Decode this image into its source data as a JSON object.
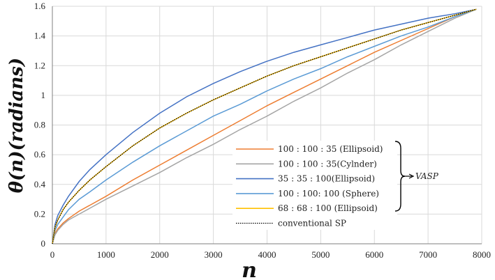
{
  "chart_data": {
    "type": "line",
    "title": "",
    "xlabel": "n",
    "ylabel": "θ(n)(radians)",
    "xlim": [
      0,
      8000
    ],
    "ylim": [
      0,
      1.6
    ],
    "xticks": [
      0,
      1000,
      2000,
      3000,
      4000,
      5000,
      6000,
      7000,
      8000
    ],
    "yticks": [
      0,
      0.2,
      0.4,
      0.6,
      0.8,
      1,
      1.2,
      1.4,
      1.6
    ],
    "xtick_labels": [
      "0",
      "1000",
      "2000",
      "3000",
      "4000",
      "5000",
      "6000",
      "7000",
      "8000"
    ],
    "ytick_labels": [
      "0",
      "0.2",
      "0.4",
      "0.6",
      "0.8",
      "1",
      "1.2",
      "1.4",
      "1.6"
    ],
    "grid": true,
    "legend_position": "lower-right",
    "legend_group_label": "VASP",
    "series": [
      {
        "name": "100 : 100 : 35 (Ellipsoid)",
        "color": "#ED7D31",
        "style": "solid",
        "x": [
          0,
          50,
          100,
          200,
          300,
          500,
          700,
          1000,
          1500,
          2000,
          2500,
          3000,
          3500,
          4000,
          4500,
          5000,
          5500,
          6000,
          6500,
          7000,
          7500,
          7900
        ],
        "y": [
          0,
          0.07,
          0.1,
          0.14,
          0.17,
          0.22,
          0.26,
          0.32,
          0.43,
          0.53,
          0.63,
          0.73,
          0.83,
          0.93,
          1.02,
          1.11,
          1.2,
          1.29,
          1.37,
          1.45,
          1.53,
          1.58
        ]
      },
      {
        "name": "100 : 100 : 35(Cylnder)",
        "color": "#A5A5A5",
        "style": "solid",
        "x": [
          0,
          50,
          100,
          200,
          300,
          500,
          700,
          1000,
          1500,
          2000,
          2500,
          3000,
          3500,
          4000,
          4500,
          5000,
          5500,
          6000,
          6500,
          7000,
          7500,
          7900
        ],
        "y": [
          0,
          0.06,
          0.09,
          0.13,
          0.16,
          0.2,
          0.24,
          0.3,
          0.39,
          0.48,
          0.58,
          0.67,
          0.77,
          0.86,
          0.96,
          1.05,
          1.15,
          1.24,
          1.34,
          1.43,
          1.52,
          1.58
        ]
      },
      {
        "name": "35 : 35 : 100(Ellipsoid)",
        "color": "#4472C4",
        "style": "solid",
        "x": [
          0,
          50,
          100,
          200,
          300,
          500,
          700,
          1000,
          1500,
          2000,
          2500,
          3000,
          3500,
          4000,
          4500,
          5000,
          5500,
          6000,
          6500,
          7000,
          7500,
          7900
        ],
        "y": [
          0,
          0.13,
          0.19,
          0.26,
          0.32,
          0.42,
          0.5,
          0.6,
          0.75,
          0.88,
          0.99,
          1.08,
          1.16,
          1.23,
          1.29,
          1.34,
          1.39,
          1.44,
          1.48,
          1.52,
          1.55,
          1.58
        ]
      },
      {
        "name": "100 : 100: 100 (Sphere)",
        "color": "#5B9BD5",
        "style": "solid",
        "x": [
          0,
          50,
          100,
          200,
          300,
          500,
          700,
          1000,
          1500,
          2000,
          2500,
          3000,
          3500,
          4000,
          4500,
          5000,
          5500,
          6000,
          6500,
          7000,
          7500,
          7900
        ],
        "y": [
          0,
          0.09,
          0.13,
          0.18,
          0.23,
          0.3,
          0.35,
          0.43,
          0.55,
          0.66,
          0.76,
          0.86,
          0.94,
          1.03,
          1.11,
          1.18,
          1.26,
          1.33,
          1.4,
          1.46,
          1.53,
          1.58
        ]
      },
      {
        "name": "68 : 68 : 100 (Ellipsoid)",
        "color": "#FFC000",
        "style": "solid",
        "x": [
          0,
          50,
          100,
          200,
          300,
          500,
          700,
          1000,
          1500,
          2000,
          2500,
          3000,
          3500,
          4000,
          4500,
          5000,
          5500,
          6000,
          6500,
          7000,
          7500,
          7900
        ],
        "y": [
          0,
          0.11,
          0.16,
          0.23,
          0.28,
          0.36,
          0.43,
          0.52,
          0.66,
          0.78,
          0.88,
          0.97,
          1.05,
          1.13,
          1.2,
          1.26,
          1.32,
          1.38,
          1.44,
          1.49,
          1.54,
          1.58
        ]
      },
      {
        "name": "conventional SP",
        "color": "#000000",
        "style": "dotted",
        "x": [
          0,
          50,
          100,
          200,
          300,
          500,
          700,
          1000,
          1500,
          2000,
          2500,
          3000,
          3500,
          4000,
          4500,
          5000,
          5500,
          6000,
          6500,
          7000,
          7500,
          7900
        ],
        "y": [
          0,
          0.11,
          0.16,
          0.23,
          0.28,
          0.36,
          0.43,
          0.52,
          0.66,
          0.78,
          0.88,
          0.97,
          1.05,
          1.13,
          1.2,
          1.26,
          1.32,
          1.38,
          1.44,
          1.49,
          1.54,
          1.58
        ]
      }
    ]
  }
}
